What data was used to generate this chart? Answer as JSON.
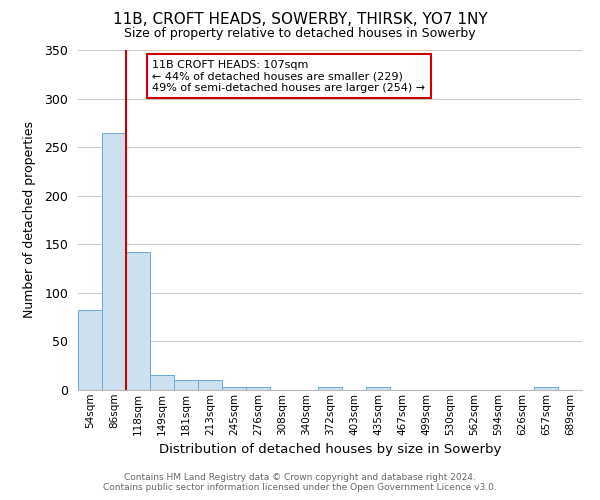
{
  "title": "11B, CROFT HEADS, SOWERBY, THIRSK, YO7 1NY",
  "subtitle": "Size of property relative to detached houses in Sowerby",
  "xlabel": "Distribution of detached houses by size in Sowerby",
  "ylabel": "Number of detached properties",
  "bin_labels": [
    "54sqm",
    "86sqm",
    "118sqm",
    "149sqm",
    "181sqm",
    "213sqm",
    "245sqm",
    "276sqm",
    "308sqm",
    "340sqm",
    "372sqm",
    "403sqm",
    "435sqm",
    "467sqm",
    "499sqm",
    "530sqm",
    "562sqm",
    "594sqm",
    "626sqm",
    "657sqm",
    "689sqm"
  ],
  "bar_heights": [
    82,
    265,
    142,
    15,
    10,
    10,
    3,
    3,
    0,
    0,
    3,
    0,
    3,
    0,
    0,
    0,
    0,
    0,
    0,
    3,
    0
  ],
  "bar_color": "#cce0f0",
  "bar_edge_color": "#6aaad4",
  "ylim": [
    0,
    350
  ],
  "yticks": [
    0,
    50,
    100,
    150,
    200,
    250,
    300,
    350
  ],
  "property_line_x": 2.0,
  "property_line_color": "#cc0000",
  "annotation_title": "11B CROFT HEADS: 107sqm",
  "annotation_line1": "← 44% of detached houses are smaller (229)",
  "annotation_line2": "49% of semi-detached houses are larger (254) →",
  "annotation_box_color": "#ffffff",
  "annotation_box_edge_color": "#cc0000",
  "footer_line1": "Contains HM Land Registry data © Crown copyright and database right 2024.",
  "footer_line2": "Contains public sector information licensed under the Open Government Licence v3.0.",
  "background_color": "#ffffff",
  "grid_color": "#cccccc"
}
